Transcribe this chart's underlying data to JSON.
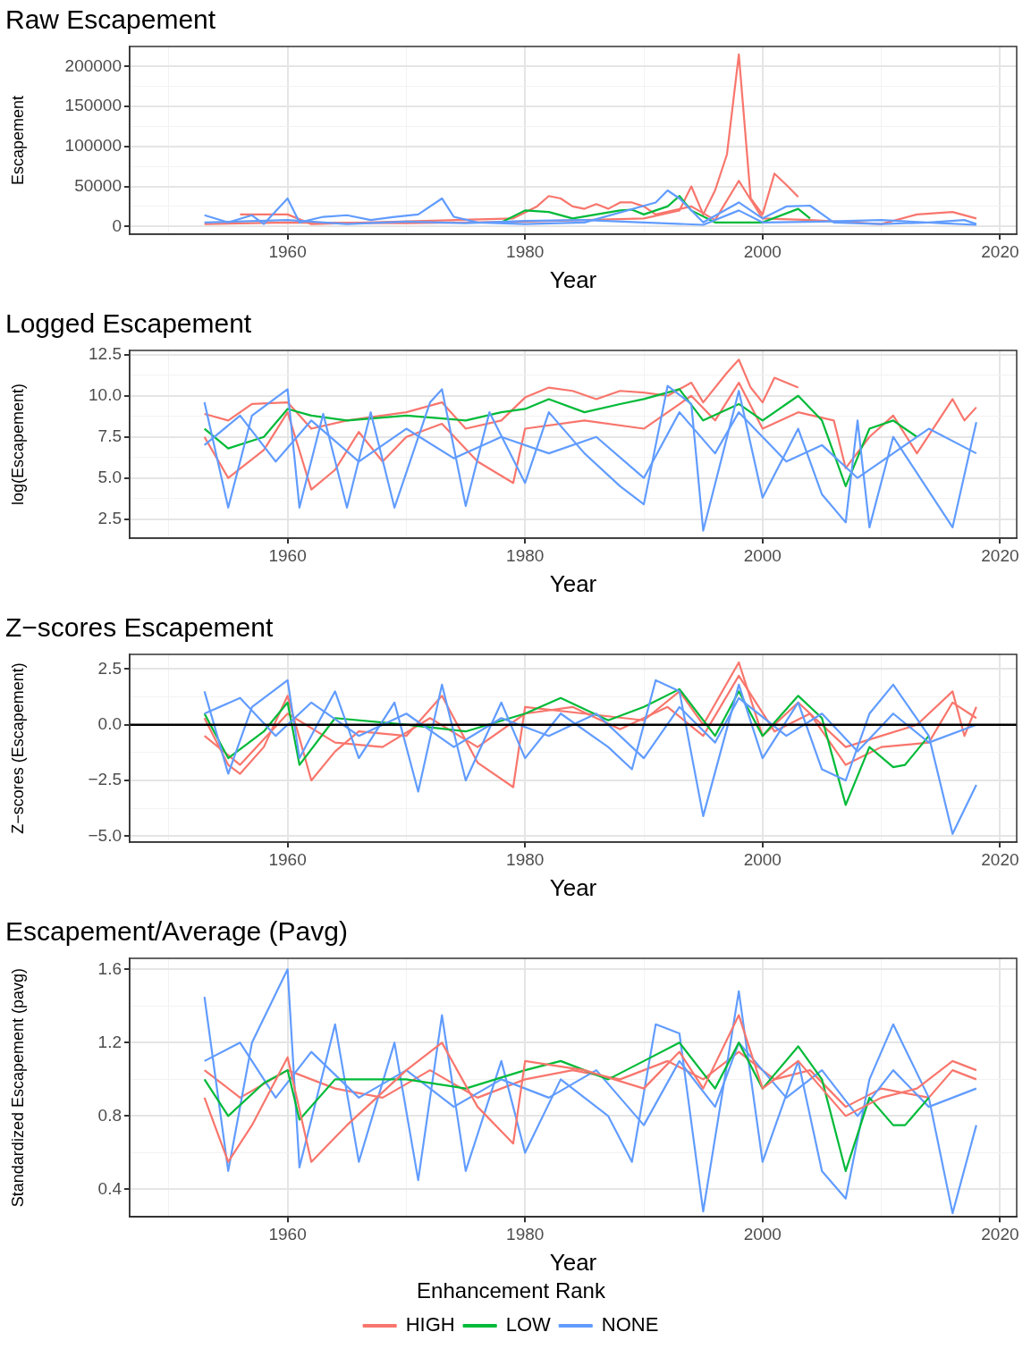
{
  "chart_data": [
    {
      "type": "line",
      "title": "Raw Escapement",
      "xlabel": "Year",
      "ylabel": "Escapement",
      "grid": true,
      "xlim": [
        1946.7,
        2021.4
      ],
      "xticks": [
        {
          "value": 1950,
          "label": null
        },
        1960,
        {
          "value": 1970,
          "label": null
        },
        1980,
        {
          "value": 1990,
          "label": null
        },
        2000,
        {
          "value": 2010,
          "label": null
        },
        2020
      ],
      "ylim": [
        -9730,
        224900
      ],
      "yticks": [
        0,
        {
          "value": 25000,
          "label": null
        },
        50000,
        {
          "value": 75000,
          "label": null
        },
        100000,
        {
          "value": 125000,
          "label": null
        },
        150000,
        {
          "value": 175000,
          "label": null
        },
        200000
      ],
      "series": [
        {
          "color": "#619cff",
          "x": [
            1953,
            1955,
            1957,
            1958,
            1960,
            1961,
            1963,
            1965,
            1967,
            1969,
            1971,
            1973,
            1974,
            1976,
            1980,
            1985,
            1991,
            1992,
            1993,
            1995,
            1998,
            2000,
            2002,
            2004,
            2006,
            2010,
            2014,
            2017,
            2018
          ],
          "values": [
            14000,
            5000,
            14000,
            3000,
            35000,
            5000,
            12000,
            14000,
            8000,
            12000,
            15000,
            35000,
            12000,
            5000,
            3000,
            5000,
            30000,
            45000,
            35000,
            5000,
            30000,
            10000,
            25000,
            26000,
            5000,
            3000,
            5000,
            8000,
            3000
          ]
        },
        {
          "color": "#619cff",
          "x": [
            1953,
            1960,
            1965,
            1970,
            1975,
            1980,
            1985,
            1990,
            1995,
            1998,
            2000,
            2005,
            2010,
            2015,
            2018
          ],
          "values": [
            5000,
            8000,
            3000,
            6000,
            4000,
            7000,
            8000,
            5000,
            2000,
            20000,
            5000,
            6000,
            8000,
            4000,
            2000
          ]
        },
        {
          "color": "#00ba38",
          "x": [
            1978,
            1980,
            1982,
            1984,
            1988,
            1989,
            1990,
            1992,
            1993,
            1994,
            1996,
            2000,
            2003,
            2004
          ],
          "values": [
            5000,
            20000,
            18000,
            10000,
            20000,
            21000,
            15000,
            25000,
            38000,
            20000,
            5000,
            5000,
            22000,
            10000
          ]
        },
        {
          "color": "#f8766d",
          "x": [
            1956,
            1960,
            1962,
            1979,
            1981,
            1982,
            1983,
            1984,
            1985,
            1986,
            1987,
            1988,
            1989,
            1990,
            1991,
            1994,
            1996,
            1998,
            2000,
            2004,
            2010,
            2013,
            2016,
            2018
          ],
          "values": [
            15000,
            15000,
            3000,
            10000,
            25000,
            38000,
            35000,
            25000,
            22000,
            28000,
            22000,
            30000,
            30000,
            25000,
            15000,
            25000,
            8000,
            57000,
            10000,
            8000,
            3000,
            15000,
            18000,
            10000
          ]
        },
        {
          "color": "#f8766d",
          "x": [
            1953,
            1960,
            1970,
            1980,
            1990,
            1993,
            1994,
            1995,
            1996,
            1997,
            1998,
            1999,
            2000,
            2001,
            2002,
            2003
          ],
          "values": [
            3000,
            5000,
            4000,
            6000,
            10000,
            20000,
            50000,
            15000,
            45000,
            90000,
            215000,
            35000,
            15000,
            66000,
            52000,
            37000
          ]
        }
      ]
    },
    {
      "type": "line",
      "title": "Logged Escapement",
      "xlabel": "Year",
      "ylabel": "log(Escapement)",
      "grid": true,
      "xlim": [
        1946.7,
        2021.4
      ],
      "xticks": [
        {
          "value": 1950,
          "label": null
        },
        1960,
        {
          "value": 1970,
          "label": null
        },
        1980,
        {
          "value": 1990,
          "label": null
        },
        2000,
        {
          "value": 2010,
          "label": null
        },
        2020
      ],
      "ylim": [
        1.34,
        12.76
      ],
      "yticks": [
        2.5,
        {
          "value": 3.75,
          "label": null
        },
        {
          "value": 5,
          "label": "5.0"
        },
        {
          "value": 6.25,
          "label": null
        },
        7.5,
        {
          "value": 8.75,
          "label": null
        },
        {
          "value": 10,
          "label": "10.0"
        },
        {
          "value": 11.25,
          "label": null
        },
        12.5
      ],
      "series": [
        {
          "color": "#619cff",
          "x": [
            1953,
            1955,
            1957,
            1960,
            1961,
            1963,
            1965,
            1967,
            1969,
            1972,
            1973,
            1975,
            1977,
            1980,
            1982,
            1985,
            1988,
            1990,
            1992,
            1994,
            1995,
            1998,
            2000,
            2003,
            2005,
            2007,
            2008,
            2009,
            2011,
            2016,
            2018
          ],
          "values": [
            9.6,
            3.2,
            8.8,
            10.4,
            3.2,
            8.9,
            3.2,
            9.0,
            3.2,
            9.6,
            10.4,
            3.3,
            9.0,
            4.7,
            9.0,
            6.5,
            4.5,
            3.4,
            10.6,
            9.5,
            1.8,
            10.3,
            3.8,
            8.0,
            4.0,
            2.3,
            8.5,
            2.0,
            7.5,
            2.0,
            8.4
          ]
        },
        {
          "color": "#619cff",
          "x": [
            1953,
            1956,
            1959,
            1962,
            1966,
            1970,
            1974,
            1978,
            1982,
            1986,
            1990,
            1993,
            1996,
            1998,
            2002,
            2005,
            2008,
            2011,
            2014,
            2018
          ],
          "values": [
            7.0,
            8.8,
            6.0,
            8.5,
            6.0,
            8.0,
            6.2,
            7.5,
            6.5,
            7.5,
            5.0,
            9.0,
            6.5,
            9.0,
            6.0,
            7.0,
            5.0,
            6.5,
            8.0,
            6.5
          ]
        },
        {
          "color": "#00ba38",
          "x": [
            1953,
            1955,
            1958,
            1960,
            1962,
            1965,
            1970,
            1975,
            1978,
            1980,
            1982,
            1985,
            1988,
            1990,
            1993,
            1995,
            1998,
            2000,
            2003,
            2005,
            2007,
            2009,
            2011,
            2013
          ],
          "values": [
            8.0,
            6.8,
            7.5,
            9.2,
            8.8,
            8.5,
            8.8,
            8.5,
            9.0,
            9.2,
            9.8,
            9.0,
            9.5,
            9.8,
            10.4,
            8.5,
            9.5,
            8.5,
            10.0,
            8.5,
            4.5,
            8.0,
            8.5,
            7.5
          ]
        },
        {
          "color": "#f8766d",
          "x": [
            1953,
            1955,
            1958,
            1960,
            1962,
            1964,
            1966,
            1968,
            1970,
            1973,
            1976,
            1979,
            1980,
            1985,
            1990,
            1994,
            1996,
            1998,
            2000,
            2003,
            2006,
            2007,
            2009,
            2011,
            2013,
            2016,
            2017,
            2018
          ],
          "values": [
            7.5,
            5.0,
            6.7,
            9.0,
            4.3,
            5.5,
            7.8,
            6.0,
            7.5,
            8.3,
            6.0,
            4.7,
            8.0,
            8.5,
            8.0,
            10.0,
            8.5,
            10.8,
            8.0,
            9.0,
            8.5,
            5.6,
            7.5,
            8.8,
            6.5,
            9.8,
            8.5,
            9.3
          ]
        },
        {
          "color": "#f8766d",
          "x": [
            1953,
            1955,
            1957,
            1960,
            1962,
            1965,
            1970,
            1973,
            1975,
            1978,
            1980,
            1982,
            1984,
            1986,
            1988,
            1990,
            1992,
            1994,
            1995,
            1997,
            1998,
            1999,
            2000,
            2001,
            2003
          ],
          "values": [
            8.9,
            8.5,
            9.5,
            9.6,
            8.0,
            8.5,
            9.0,
            9.6,
            8.0,
            8.5,
            9.9,
            10.5,
            10.3,
            9.8,
            10.3,
            10.2,
            10.0,
            10.8,
            9.6,
            11.4,
            12.2,
            10.5,
            9.6,
            11.1,
            10.5
          ]
        }
      ]
    },
    {
      "type": "line",
      "title": "Z−scores Escapement",
      "xlabel": "Year",
      "ylabel": "Z−scores (Escapement)",
      "grid": true,
      "xlim": [
        1946.7,
        2021.4
      ],
      "xticks": [
        {
          "value": 1950,
          "label": null
        },
        1960,
        {
          "value": 1970,
          "label": null
        },
        1980,
        {
          "value": 1990,
          "label": null
        },
        2000,
        {
          "value": 2010,
          "label": null
        },
        2020
      ],
      "ylim": [
        -5.27,
        3.16
      ],
      "yticks": [
        {
          "value": -5,
          "label": "−5.0"
        },
        {
          "value": -3.75,
          "label": null
        },
        {
          "value": -2.5,
          "label": "−2.5"
        },
        {
          "value": -1.25,
          "label": null
        },
        {
          "value": 0,
          "label": "0.0"
        },
        {
          "value": 1.25,
          "label": null
        },
        2.5
      ],
      "ref_lines": [
        {
          "axis": "y",
          "value": 0,
          "color": "#000000"
        }
      ],
      "series": [
        {
          "color": "#619cff",
          "x": [
            1953,
            1955,
            1957,
            1960,
            1961,
            1964,
            1966,
            1969,
            1971,
            1973,
            1975,
            1978,
            1980,
            1983,
            1987,
            1989,
            1991,
            1993,
            1995,
            1998,
            2000,
            2003,
            2005,
            2007,
            2009,
            2011,
            2014,
            2016,
            2018
          ],
          "values": [
            1.5,
            -2.2,
            0.8,
            2.0,
            -1.5,
            1.5,
            -1.5,
            1.0,
            -3.0,
            1.8,
            -2.5,
            1.0,
            -1.5,
            0.5,
            -1.0,
            -2.0,
            2.0,
            1.5,
            -4.1,
            1.8,
            -1.5,
            1.0,
            -2.0,
            -2.5,
            0.5,
            1.8,
            -0.5,
            -4.9,
            -2.7
          ]
        },
        {
          "color": "#619cff",
          "x": [
            1953,
            1956,
            1959,
            1962,
            1966,
            1970,
            1974,
            1978,
            1982,
            1986,
            1990,
            1993,
            1996,
            1998,
            2002,
            2005,
            2008,
            2011,
            2014,
            2018
          ],
          "values": [
            0.5,
            1.2,
            -0.5,
            1.0,
            -0.5,
            0.5,
            -1.0,
            0.3,
            -0.5,
            0.5,
            -1.5,
            0.8,
            -0.8,
            1.2,
            -0.5,
            0.5,
            -1.2,
            0.5,
            -0.8,
            0.0
          ]
        },
        {
          "color": "#00ba38",
          "x": [
            1953,
            1955,
            1958,
            1960,
            1961,
            1964,
            1970,
            1975,
            1980,
            1983,
            1987,
            1990,
            1993,
            1996,
            1998,
            2000,
            2003,
            2005,
            2007,
            2009,
            2011,
            2012,
            2014
          ],
          "values": [
            0.5,
            -1.5,
            -0.3,
            1.0,
            -1.8,
            0.3,
            0.0,
            -0.3,
            0.5,
            1.2,
            0.2,
            0.8,
            1.6,
            -0.5,
            1.5,
            -0.5,
            1.3,
            0.3,
            -3.6,
            -1.0,
            -1.9,
            -1.8,
            -0.5
          ]
        },
        {
          "color": "#f8766d",
          "x": [
            1953,
            1956,
            1960,
            1964,
            1968,
            1972,
            1976,
            1980,
            1984,
            1988,
            1992,
            1995,
            1998,
            2001,
            2004,
            2007,
            2010,
            2014,
            2016,
            2018
          ],
          "values": [
            -0.5,
            -1.8,
            0.5,
            -0.8,
            -1.0,
            0.3,
            -1.0,
            0.5,
            0.8,
            -0.2,
            0.8,
            -0.5,
            2.2,
            -0.3,
            0.5,
            -1.8,
            -1.0,
            -0.8,
            1.0,
            0.3
          ]
        },
        {
          "color": "#f8766d",
          "x": [
            1953,
            1955,
            1956,
            1958,
            1960,
            1962,
            1964,
            1966,
            1970,
            1973,
            1976,
            1979,
            1980,
            1985,
            1990,
            1993,
            1995,
            1998,
            2000,
            2003,
            2007,
            2010,
            2013,
            2016,
            2017,
            2018
          ],
          "values": [
            0.3,
            -1.8,
            -2.2,
            -1.0,
            1.3,
            -2.5,
            -1.2,
            -0.3,
            -0.5,
            1.3,
            -1.7,
            -2.8,
            0.8,
            0.5,
            0.2,
            1.5,
            0.0,
            2.8,
            -0.5,
            1.0,
            -1.0,
            -0.5,
            0.0,
            1.5,
            -0.5,
            0.8
          ]
        }
      ]
    },
    {
      "type": "line",
      "title": "Escapement/Average (Pavg)",
      "xlabel": "Year",
      "ylabel": "Standardized Escapement (pavg)",
      "grid": true,
      "legend": "bottom",
      "legend_title": "Enhancement Rank",
      "xlim": [
        1946.7,
        2021.4
      ],
      "xticks": [
        {
          "value": 1950,
          "label": null
        },
        1960,
        {
          "value": 1970,
          "label": null
        },
        1980,
        {
          "value": 1990,
          "label": null
        },
        2000,
        {
          "value": 2010,
          "label": null
        },
        2020
      ],
      "ylim": [
        0.25,
        1.66
      ],
      "yticks": [
        0.4,
        {
          "value": 0.6,
          "label": null
        },
        0.8,
        {
          "value": 1.0,
          "label": null
        },
        1.2,
        {
          "value": 1.4,
          "label": null
        },
        1.6
      ],
      "series": [
        {
          "name": "HIGH",
          "color": "#f8766d",
          "x": [
            1953,
            1955,
            1957,
            1960,
            1962,
            1965,
            1970,
            1973,
            1976,
            1979,
            1980,
            1985,
            1990,
            1993,
            1995,
            1998,
            2000,
            2003,
            2007,
            2010,
            2013,
            2016,
            2018
          ],
          "values": [
            0.9,
            0.55,
            0.75,
            1.12,
            0.55,
            0.75,
            1.05,
            1.2,
            0.85,
            0.65,
            1.1,
            1.05,
            0.95,
            1.15,
            0.95,
            1.35,
            0.95,
            1.1,
            0.8,
            0.9,
            0.95,
            1.1,
            1.05
          ]
        },
        {
          "name": "LOW",
          "color": "#00ba38",
          "x": [
            1953,
            1955,
            1958,
            1960,
            1961,
            1964,
            1970,
            1975,
            1980,
            1983,
            1987,
            1990,
            1993,
            1996,
            1998,
            2000,
            2003,
            2005,
            2007,
            2009,
            2011,
            2012,
            2014
          ],
          "values": [
            1.0,
            0.8,
            0.98,
            1.05,
            0.78,
            1.0,
            1.0,
            0.95,
            1.05,
            1.1,
            1.0,
            1.1,
            1.2,
            0.95,
            1.2,
            0.95,
            1.18,
            1.0,
            0.5,
            0.9,
            0.75,
            0.75,
            0.9
          ]
        },
        {
          "name": "NONE",
          "color": "#619cff",
          "x": [
            1953,
            1955,
            1957,
            1960,
            1961,
            1964,
            1966,
            1969,
            1971,
            1973,
            1975,
            1978,
            1980,
            1983,
            1987,
            1989,
            1991,
            1993,
            1995,
            1998,
            2000,
            2003,
            2005,
            2007,
            2009,
            2011,
            2014,
            2016,
            2018
          ],
          "values": [
            1.45,
            0.5,
            1.2,
            1.6,
            0.52,
            1.3,
            0.55,
            1.2,
            0.45,
            1.35,
            0.5,
            1.1,
            0.6,
            1.0,
            0.8,
            0.55,
            1.3,
            1.25,
            0.28,
            1.48,
            0.55,
            1.1,
            0.5,
            0.35,
            1.0,
            1.3,
            0.9,
            0.27,
            0.75
          ]
        },
        {
          "color": "#619cff",
          "x": [
            1953,
            1956,
            1959,
            1962,
            1966,
            1970,
            1974,
            1978,
            1982,
            1986,
            1990,
            1993,
            1996,
            1998,
            2002,
            2005,
            2008,
            2011,
            2014,
            2018
          ],
          "values": [
            1.1,
            1.2,
            0.9,
            1.15,
            0.9,
            1.05,
            0.85,
            1.0,
            0.9,
            1.05,
            0.75,
            1.1,
            0.85,
            1.2,
            0.9,
            1.05,
            0.8,
            1.05,
            0.85,
            0.95
          ]
        },
        {
          "color": "#f8766d",
          "x": [
            1953,
            1956,
            1960,
            1964,
            1968,
            1972,
            1976,
            1980,
            1984,
            1988,
            1992,
            1995,
            1998,
            2001,
            2004,
            2007,
            2010,
            2014,
            2016,
            2018
          ],
          "values": [
            1.05,
            0.9,
            1.05,
            0.95,
            0.9,
            1.05,
            0.9,
            1.0,
            1.05,
            1.0,
            1.1,
            1.0,
            1.15,
            1.0,
            1.05,
            0.85,
            0.95,
            0.9,
            1.05,
            1.0
          ]
        }
      ]
    }
  ]
}
